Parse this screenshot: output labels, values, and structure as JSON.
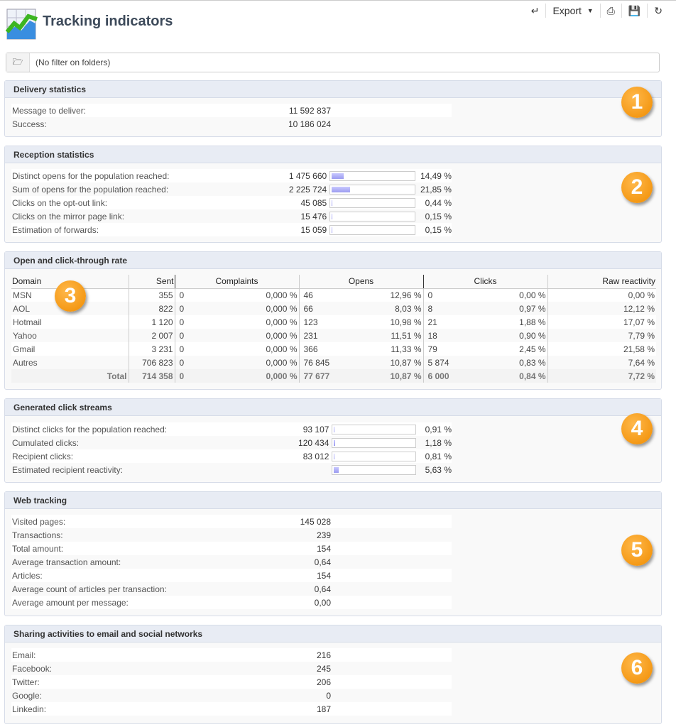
{
  "header": {
    "title": "Tracking indicators",
    "icon": "chart-icon"
  },
  "toolbar": {
    "back_icon": "back-arrow-icon",
    "export_label": "Export",
    "print_icon": "print-icon",
    "save_icon": "save-icon",
    "refresh_icon": "refresh-icon"
  },
  "filter": {
    "text": "(No filter on folders)",
    "icon": "folder-icon"
  },
  "delivery": {
    "title": "Delivery statistics",
    "badge": "1",
    "rows": [
      {
        "label": "Message to deliver:",
        "value": "11 592 837"
      },
      {
        "label": "Success:",
        "value": "10 186 024"
      }
    ]
  },
  "reception": {
    "title": "Reception statistics",
    "badge": "2",
    "rows": [
      {
        "label": "Distinct opens for the population reached:",
        "value": "1 475 660",
        "pct": "14,49 %",
        "fill": 14.49
      },
      {
        "label": "Sum of opens for the population reached:",
        "value": "2 225 724",
        "pct": "21,85 %",
        "fill": 21.85
      },
      {
        "label": "Clicks on the opt-out link:",
        "value": "45 085",
        "pct": "0,44 %",
        "fill": 0.44
      },
      {
        "label": "Clicks on the mirror page link:",
        "value": "15 476",
        "pct": "0,15 %",
        "fill": 0.15
      },
      {
        "label": "Estimation of forwards:",
        "value": "15 059",
        "pct": "0,15 %",
        "fill": 0.15
      }
    ]
  },
  "rates": {
    "title": "Open and click-through rate",
    "badge": "3",
    "headers": [
      "Domain",
      "Sent",
      "Complaints",
      "Opens",
      "Clicks",
      "Raw reactivity"
    ],
    "rows": [
      [
        "MSN",
        "355",
        "0",
        "0,000 %",
        "46",
        "12,96 %",
        "0",
        "0,00 %",
        "0,00 %"
      ],
      [
        "AOL",
        "822",
        "0",
        "0,000 %",
        "66",
        "8,03 %",
        "8",
        "0,97 %",
        "12,12 %"
      ],
      [
        "Hotmail",
        "1 120",
        "0",
        "0,000 %",
        "123",
        "10,98 %",
        "21",
        "1,88 %",
        "17,07 %"
      ],
      [
        "Yahoo",
        "2 007",
        "0",
        "0,000 %",
        "231",
        "11,51 %",
        "18",
        "0,90 %",
        "7,79 %"
      ],
      [
        "Gmail",
        "3 231",
        "0",
        "0,000 %",
        "366",
        "11,33 %",
        "79",
        "2,45 %",
        "21,58 %"
      ],
      [
        "Autres",
        "706 823",
        "0",
        "0,000 %",
        "76 845",
        "10,87 %",
        "5 874",
        "0,83 %",
        "7,64 %"
      ]
    ],
    "total": [
      "Total",
      "714 358",
      "0",
      "0,000 %",
      "77 677",
      "10,87 %",
      "6 000",
      "0,84 %",
      "7,72 %"
    ]
  },
  "clicks": {
    "title": "Generated click streams",
    "badge": "4",
    "rows": [
      {
        "label": "Distinct clicks for the population reached:",
        "value": "93 107",
        "pct": "0,91 %",
        "fill": 0.91
      },
      {
        "label": "Cumulated clicks:",
        "value": "120 434",
        "pct": "1,18 %",
        "fill": 1.18
      },
      {
        "label": "Recipient clicks:",
        "value": "83 012",
        "pct": "0,81 %",
        "fill": 0.81
      },
      {
        "label": "Estimated recipient reactivity:",
        "value": "",
        "pct": "5,63 %",
        "fill": 5.63
      }
    ]
  },
  "web": {
    "title": "Web tracking",
    "badge": "5",
    "rows": [
      {
        "label": "Visited pages:",
        "value": "145 028"
      },
      {
        "label": "Transactions:",
        "value": "239"
      },
      {
        "label": "Total amount:",
        "value": "154"
      },
      {
        "label": "Average transaction amount:",
        "value": "0,64"
      },
      {
        "label": "Articles:",
        "value": "154"
      },
      {
        "label": "Average count of articles per transaction:",
        "value": "0,64"
      },
      {
        "label": "Average amount per message:",
        "value": "0,00"
      }
    ]
  },
  "sharing": {
    "title": "Sharing activities to email and social networks",
    "badge": "6",
    "rows": [
      {
        "label": "Email:",
        "value": "216"
      },
      {
        "label": "Facebook:",
        "value": "245"
      },
      {
        "label": "Twitter:",
        "value": "206"
      },
      {
        "label": "Google:",
        "value": "0"
      },
      {
        "label": "Linkedin:",
        "value": "187"
      }
    ]
  }
}
